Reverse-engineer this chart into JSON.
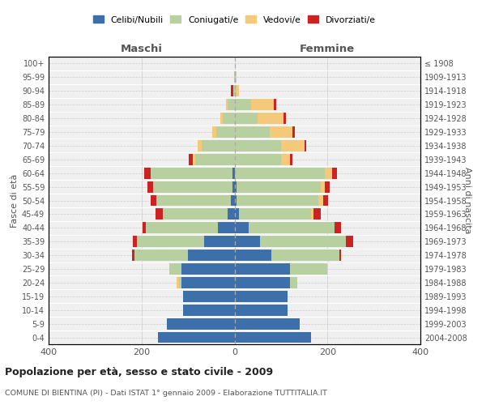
{
  "age_groups": [
    "0-4",
    "5-9",
    "10-14",
    "15-19",
    "20-24",
    "25-29",
    "30-34",
    "35-39",
    "40-44",
    "45-49",
    "50-54",
    "55-59",
    "60-64",
    "65-69",
    "70-74",
    "75-79",
    "80-84",
    "85-89",
    "90-94",
    "95-99",
    "100+"
  ],
  "birth_years": [
    "2004-2008",
    "1999-2003",
    "1994-1998",
    "1989-1993",
    "1984-1988",
    "1979-1983",
    "1974-1978",
    "1969-1973",
    "1964-1968",
    "1959-1963",
    "1954-1958",
    "1949-1953",
    "1944-1948",
    "1939-1943",
    "1934-1938",
    "1929-1933",
    "1924-1928",
    "1919-1923",
    "1914-1918",
    "1909-1913",
    "≤ 1908"
  ],
  "maschi": {
    "celibi": [
      165,
      145,
      110,
      110,
      115,
      115,
      100,
      65,
      35,
      15,
      8,
      5,
      5,
      0,
      0,
      0,
      0,
      0,
      0,
      0,
      0
    ],
    "coniugati": [
      0,
      0,
      0,
      0,
      5,
      25,
      115,
      145,
      155,
      140,
      160,
      170,
      175,
      85,
      70,
      40,
      25,
      15,
      3,
      1,
      0
    ],
    "vedovi": [
      0,
      0,
      0,
      0,
      5,
      0,
      0,
      0,
      0,
      0,
      0,
      0,
      0,
      5,
      10,
      8,
      5,
      3,
      0,
      0,
      0
    ],
    "divorziati": [
      0,
      0,
      0,
      0,
      0,
      0,
      5,
      8,
      8,
      15,
      12,
      12,
      15,
      8,
      0,
      0,
      0,
      0,
      5,
      0,
      0
    ]
  },
  "femmine": {
    "nubili": [
      165,
      140,
      115,
      115,
      120,
      120,
      80,
      55,
      30,
      10,
      5,
      5,
      0,
      0,
      0,
      0,
      0,
      0,
      0,
      0,
      0
    ],
    "coniugate": [
      0,
      0,
      0,
      0,
      15,
      80,
      145,
      185,
      185,
      155,
      175,
      180,
      195,
      100,
      100,
      75,
      50,
      35,
      5,
      2,
      0
    ],
    "vedove": [
      0,
      0,
      0,
      0,
      0,
      0,
      0,
      0,
      0,
      5,
      10,
      10,
      15,
      20,
      50,
      50,
      55,
      50,
      5,
      2,
      0
    ],
    "divorziate": [
      0,
      0,
      0,
      0,
      0,
      0,
      5,
      15,
      15,
      15,
      12,
      10,
      10,
      5,
      5,
      5,
      5,
      5,
      0,
      0,
      0
    ]
  },
  "colors": {
    "celibi_nubili": "#3d6faa",
    "coniugati": "#b8cfa0",
    "vedovi": "#f5c97a",
    "divorziati": "#cc2222"
  },
  "xlim": 400,
  "title": "Popolazione per età, sesso e stato civile - 2009",
  "subtitle": "COMUNE DI BIENTINA (PI) - Dati ISTAT 1° gennaio 2009 - Elaborazione TUTTITALIA.IT",
  "xlabel_left": "Maschi",
  "xlabel_right": "Femmine",
  "ylabel_left": "Fasce di età",
  "ylabel_right": "Anni di nascita",
  "background_color": "#ffffff",
  "plot_bg_color": "#f0f0f0",
  "grid_color": "#cccccc"
}
